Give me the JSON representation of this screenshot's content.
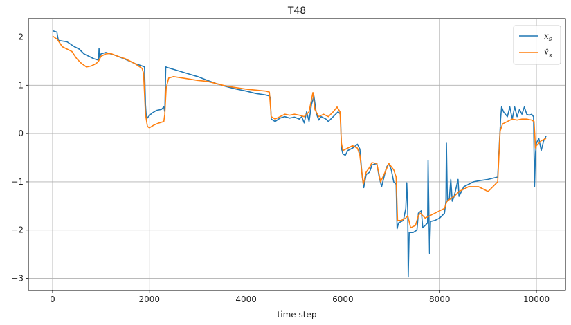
{
  "chart_data": {
    "type": "line",
    "title": "T48",
    "xlabel": "time step",
    "ylabel": "",
    "xlim": [
      -500,
      10600
    ],
    "ylim": [
      -3.25,
      2.38
    ],
    "xticks": [
      0,
      2000,
      4000,
      6000,
      8000,
      10000
    ],
    "yticks": [
      -3,
      -2,
      -1,
      0,
      1,
      2
    ],
    "xtick_labels": [
      "0",
      "2000",
      "4000",
      "6000",
      "8000",
      "10000"
    ],
    "ytick_labels": [
      "−3",
      "−2",
      "−1",
      "0",
      "1",
      "2"
    ],
    "grid": true,
    "legend_position": "top-right",
    "series": [
      {
        "name": "x_s",
        "legend_label": "xs",
        "color": "#1f77b4",
        "points": [
          [
            0,
            2.13
          ],
          [
            90,
            2.1
          ],
          [
            120,
            1.93
          ],
          [
            300,
            1.9
          ],
          [
            450,
            1.8
          ],
          [
            550,
            1.75
          ],
          [
            650,
            1.65
          ],
          [
            750,
            1.6
          ],
          [
            850,
            1.55
          ],
          [
            950,
            1.52
          ],
          [
            960,
            1.76
          ],
          [
            970,
            1.58
          ],
          [
            1000,
            1.65
          ],
          [
            1100,
            1.68
          ],
          [
            1300,
            1.62
          ],
          [
            1500,
            1.54
          ],
          [
            1700,
            1.45
          ],
          [
            1850,
            1.4
          ],
          [
            1900,
            1.38
          ],
          [
            1920,
            0.6
          ],
          [
            1940,
            0.3
          ],
          [
            1980,
            0.35
          ],
          [
            2050,
            0.42
          ],
          [
            2150,
            0.48
          ],
          [
            2250,
            0.5
          ],
          [
            2300,
            0.55
          ],
          [
            2320,
            0.45
          ],
          [
            2340,
            1.38
          ],
          [
            2400,
            1.36
          ],
          [
            2600,
            1.3
          ],
          [
            2800,
            1.24
          ],
          [
            3000,
            1.18
          ],
          [
            3200,
            1.1
          ],
          [
            3400,
            1.03
          ],
          [
            3600,
            0.97
          ],
          [
            3800,
            0.92
          ],
          [
            4000,
            0.88
          ],
          [
            4200,
            0.83
          ],
          [
            4400,
            0.8
          ],
          [
            4480,
            0.78
          ],
          [
            4500,
            0.75
          ],
          [
            4520,
            0.3
          ],
          [
            4600,
            0.25
          ],
          [
            4700,
            0.32
          ],
          [
            4800,
            0.35
          ],
          [
            4900,
            0.32
          ],
          [
            5000,
            0.34
          ],
          [
            5100,
            0.3
          ],
          [
            5150,
            0.35
          ],
          [
            5200,
            0.22
          ],
          [
            5250,
            0.45
          ],
          [
            5300,
            0.25
          ],
          [
            5350,
            0.6
          ],
          [
            5400,
            0.78
          ],
          [
            5450,
            0.42
          ],
          [
            5500,
            0.28
          ],
          [
            5550,
            0.35
          ],
          [
            5650,
            0.3
          ],
          [
            5700,
            0.25
          ],
          [
            5800,
            0.35
          ],
          [
            5900,
            0.45
          ],
          [
            5950,
            0.4
          ],
          [
            5970,
            -0.3
          ],
          [
            6000,
            -0.42
          ],
          [
            6050,
            -0.45
          ],
          [
            6100,
            -0.35
          ],
          [
            6200,
            -0.3
          ],
          [
            6300,
            -0.22
          ],
          [
            6350,
            -0.32
          ],
          [
            6400,
            -0.9
          ],
          [
            6430,
            -1.12
          ],
          [
            6480,
            -0.85
          ],
          [
            6550,
            -0.8
          ],
          [
            6600,
            -0.65
          ],
          [
            6700,
            -0.62
          ],
          [
            6750,
            -0.9
          ],
          [
            6800,
            -1.1
          ],
          [
            6850,
            -0.9
          ],
          [
            6900,
            -0.7
          ],
          [
            6950,
            -0.62
          ],
          [
            7000,
            -0.75
          ],
          [
            7050,
            -1.0
          ],
          [
            7100,
            -1.05
          ],
          [
            7120,
            -1.97
          ],
          [
            7150,
            -1.85
          ],
          [
            7250,
            -1.8
          ],
          [
            7300,
            -1.55
          ],
          [
            7320,
            -1.02
          ],
          [
            7340,
            -1.6
          ],
          [
            7350,
            -2.97
          ],
          [
            7370,
            -2.05
          ],
          [
            7450,
            -2.05
          ],
          [
            7530,
            -2.0
          ],
          [
            7560,
            -1.65
          ],
          [
            7620,
            -1.6
          ],
          [
            7650,
            -1.95
          ],
          [
            7700,
            -1.9
          ],
          [
            7750,
            -1.85
          ],
          [
            7760,
            -0.55
          ],
          [
            7780,
            -1.85
          ],
          [
            7790,
            -2.48
          ],
          [
            7810,
            -1.82
          ],
          [
            7900,
            -1.8
          ],
          [
            8000,
            -1.75
          ],
          [
            8050,
            -1.7
          ],
          [
            8100,
            -1.65
          ],
          [
            8130,
            -1.4
          ],
          [
            8140,
            -0.2
          ],
          [
            8160,
            -1.4
          ],
          [
            8200,
            -1.35
          ],
          [
            8230,
            -0.95
          ],
          [
            8260,
            -1.4
          ],
          [
            8300,
            -1.3
          ],
          [
            8380,
            -0.95
          ],
          [
            8400,
            -1.3
          ],
          [
            8500,
            -1.1
          ],
          [
            8600,
            -1.05
          ],
          [
            8700,
            -1.0
          ],
          [
            8800,
            -0.98
          ],
          [
            9000,
            -0.95
          ],
          [
            9200,
            -0.9
          ],
          [
            9260,
            0.3
          ],
          [
            9280,
            0.55
          ],
          [
            9320,
            0.45
          ],
          [
            9400,
            0.35
          ],
          [
            9450,
            0.55
          ],
          [
            9500,
            0.3
          ],
          [
            9550,
            0.55
          ],
          [
            9600,
            0.35
          ],
          [
            9650,
            0.5
          ],
          [
            9700,
            0.4
          ],
          [
            9750,
            0.55
          ],
          [
            9800,
            0.4
          ],
          [
            9850,
            0.38
          ],
          [
            9900,
            0.4
          ],
          [
            9940,
            0.35
          ],
          [
            9960,
            -1.1
          ],
          [
            9980,
            -0.4
          ],
          [
            10000,
            -0.2
          ],
          [
            10050,
            -0.1
          ],
          [
            10100,
            -0.35
          ],
          [
            10150,
            -0.15
          ],
          [
            10200,
            -0.05
          ]
        ]
      },
      {
        "name": "x̂_s",
        "legend_label": "x̂s",
        "color": "#ff7f0e",
        "points": [
          [
            0,
            2.02
          ],
          [
            100,
            1.95
          ],
          [
            200,
            1.8
          ],
          [
            300,
            1.75
          ],
          [
            400,
            1.7
          ],
          [
            500,
            1.55
          ],
          [
            600,
            1.45
          ],
          [
            700,
            1.38
          ],
          [
            800,
            1.4
          ],
          [
            900,
            1.45
          ],
          [
            950,
            1.5
          ],
          [
            1000,
            1.6
          ],
          [
            1100,
            1.65
          ],
          [
            1200,
            1.66
          ],
          [
            1300,
            1.62
          ],
          [
            1500,
            1.55
          ],
          [
            1700,
            1.45
          ],
          [
            1850,
            1.35
          ],
          [
            1880,
            1.25
          ],
          [
            1920,
            0.4
          ],
          [
            1960,
            0.15
          ],
          [
            2000,
            0.12
          ],
          [
            2100,
            0.18
          ],
          [
            2200,
            0.22
          ],
          [
            2300,
            0.25
          ],
          [
            2320,
            0.4
          ],
          [
            2350,
            0.95
          ],
          [
            2400,
            1.15
          ],
          [
            2500,
            1.18
          ],
          [
            2700,
            1.15
          ],
          [
            3000,
            1.1
          ],
          [
            3200,
            1.08
          ],
          [
            3400,
            1.03
          ],
          [
            3600,
            0.98
          ],
          [
            3800,
            0.95
          ],
          [
            4000,
            0.92
          ],
          [
            4200,
            0.9
          ],
          [
            4400,
            0.88
          ],
          [
            4480,
            0.86
          ],
          [
            4520,
            0.35
          ],
          [
            4600,
            0.3
          ],
          [
            4700,
            0.35
          ],
          [
            4800,
            0.4
          ],
          [
            4900,
            0.38
          ],
          [
            5000,
            0.4
          ],
          [
            5100,
            0.38
          ],
          [
            5200,
            0.35
          ],
          [
            5300,
            0.45
          ],
          [
            5380,
            0.85
          ],
          [
            5420,
            0.5
          ],
          [
            5500,
            0.35
          ],
          [
            5600,
            0.4
          ],
          [
            5700,
            0.35
          ],
          [
            5800,
            0.45
          ],
          [
            5880,
            0.55
          ],
          [
            5940,
            0.45
          ],
          [
            5970,
            -0.2
          ],
          [
            6000,
            -0.35
          ],
          [
            6100,
            -0.3
          ],
          [
            6200,
            -0.25
          ],
          [
            6300,
            -0.3
          ],
          [
            6350,
            -0.45
          ],
          [
            6420,
            -1.05
          ],
          [
            6480,
            -0.8
          ],
          [
            6550,
            -0.7
          ],
          [
            6600,
            -0.6
          ],
          [
            6700,
            -0.62
          ],
          [
            6780,
            -1.0
          ],
          [
            6850,
            -0.85
          ],
          [
            6950,
            -0.62
          ],
          [
            7050,
            -0.75
          ],
          [
            7100,
            -0.9
          ],
          [
            7130,
            -1.8
          ],
          [
            7200,
            -1.8
          ],
          [
            7300,
            -1.75
          ],
          [
            7340,
            -1.7
          ],
          [
            7400,
            -1.95
          ],
          [
            7500,
            -1.9
          ],
          [
            7560,
            -1.7
          ],
          [
            7600,
            -1.65
          ],
          [
            7700,
            -1.75
          ],
          [
            7800,
            -1.7
          ],
          [
            7900,
            -1.65
          ],
          [
            8000,
            -1.6
          ],
          [
            8100,
            -1.55
          ],
          [
            8150,
            -1.4
          ],
          [
            8300,
            -1.3
          ],
          [
            8400,
            -1.2
          ],
          [
            8500,
            -1.15
          ],
          [
            8600,
            -1.1
          ],
          [
            8800,
            -1.1
          ],
          [
            8900,
            -1.15
          ],
          [
            9000,
            -1.2
          ],
          [
            9100,
            -1.1
          ],
          [
            9200,
            -1.0
          ],
          [
            9250,
            0.05
          ],
          [
            9300,
            0.2
          ],
          [
            9400,
            0.25
          ],
          [
            9500,
            0.3
          ],
          [
            9600,
            0.28
          ],
          [
            9700,
            0.3
          ],
          [
            9800,
            0.3
          ],
          [
            9900,
            0.28
          ],
          [
            9950,
            0.25
          ],
          [
            9980,
            -0.3
          ],
          [
            10000,
            -0.25
          ],
          [
            10050,
            -0.2
          ],
          [
            10100,
            -0.15
          ],
          [
            10200,
            -0.1
          ]
        ]
      }
    ]
  }
}
